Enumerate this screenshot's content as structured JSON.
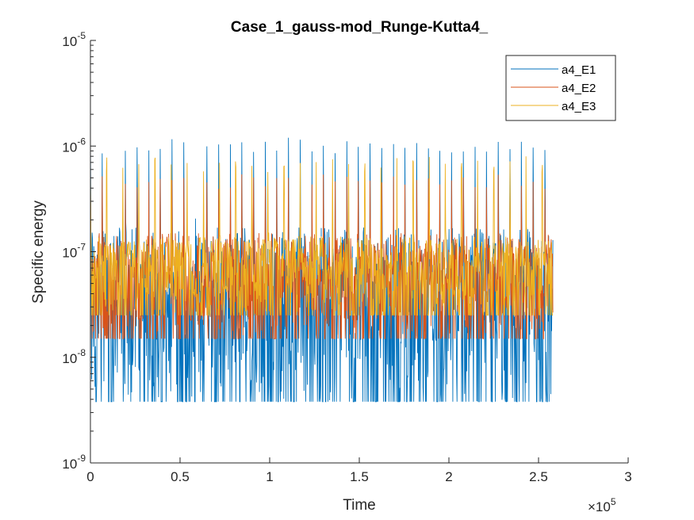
{
  "chart_data": {
    "type": "line",
    "title": "Case_1_gauss-mod_Runge-Kutta4_",
    "xlabel": "Time",
    "ylabel": "Specific energy",
    "x_multiplier_label": "×10",
    "x_multiplier_exp": "5",
    "xlim": [
      0,
      300000
    ],
    "ylim": [
      1e-09,
      1e-05
    ],
    "yscale": "log",
    "x_ticks": [
      {
        "value": 0,
        "label": "0"
      },
      {
        "value": 50000,
        "label": "0.5"
      },
      {
        "value": 100000,
        "label": "1"
      },
      {
        "value": 150000,
        "label": "1.5"
      },
      {
        "value": 200000,
        "label": "2"
      },
      {
        "value": 250000,
        "label": "2.5"
      },
      {
        "value": 300000,
        "label": "3"
      }
    ],
    "y_ticks": [
      {
        "value": 1e-09,
        "base": "10",
        "exp": "-9"
      },
      {
        "value": 1e-08,
        "base": "10",
        "exp": "-8"
      },
      {
        "value": 1e-07,
        "base": "10",
        "exp": "-7"
      },
      {
        "value": 1e-06,
        "base": "10",
        "exp": "-6"
      },
      {
        "value": 1e-05,
        "base": "10",
        "exp": "-5"
      }
    ],
    "legend_position": "top-right",
    "x_end": 258000,
    "series": [
      {
        "name": "a4_E1",
        "color": "#0072BD",
        "min": 3.8e-09,
        "typical_max": 1.7e-07,
        "peak": 1.2e-06,
        "peak_period": 6500
      },
      {
        "name": "a4_E2",
        "color": "#D95319",
        "min": 1.5e-08,
        "typical_max": 1.5e-07,
        "peak": 5.5e-07,
        "peak_period": 6500
      },
      {
        "name": "a4_E3",
        "color": "#EDB120",
        "min": 2.5e-08,
        "typical_max": 1.4e-07,
        "peak": 8e-07,
        "peak_period": 9000
      }
    ]
  }
}
